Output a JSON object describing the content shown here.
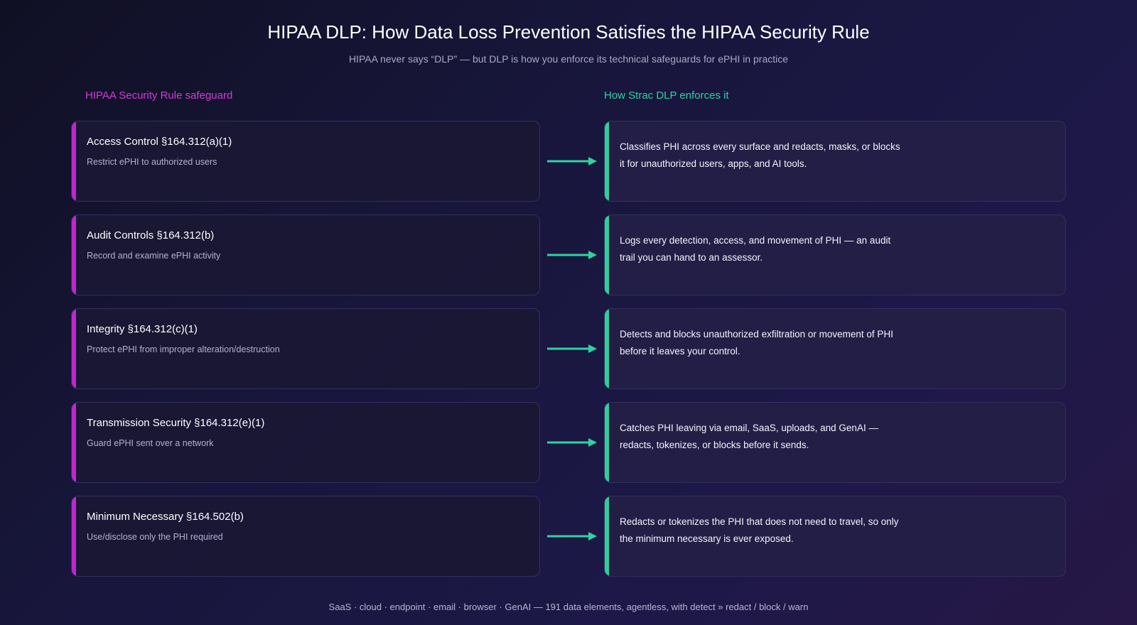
{
  "title": "HIPAA DLP: How Data Loss Prevention Satisfies the HIPAA Security Rule",
  "subtitle": "HIPAA never says “DLP” — but DLP is how you enforce its technical safeguards for ePHI in practice",
  "columns": {
    "left": "HIPAA Security Rule safeguard",
    "right": "How Strac DLP enforces it"
  },
  "rows": [
    {
      "safeguard": "Access Control §164.312(a)(1)",
      "description": "Restrict ePHI to authorized users",
      "enforcement": "Classifies PHI across every surface and redacts, masks, or blocks it for unauthorized users, apps, and AI tools."
    },
    {
      "safeguard": "Audit Controls §164.312(b)",
      "description": "Record and examine ePHI activity",
      "enforcement": "Logs every detection, access, and movement of PHI — an audit trail you can hand to an assessor."
    },
    {
      "safeguard": "Integrity §164.312(c)(1)",
      "description": "Protect ePHI from improper alteration/destruction",
      "enforcement": "Detects and blocks unauthorized exfiltration or movement of PHI before it leaves your control."
    },
    {
      "safeguard": "Transmission Security §164.312(e)(1)",
      "description": "Guard ePHI sent over a network",
      "enforcement": "Catches PHI leaving via email, SaaS, uploads, and GenAI — redacts, tokenizes, or blocks before it sends."
    },
    {
      "safeguard": "Minimum Necessary §164.502(b)",
      "description": "Use/disclose only the PHI required",
      "enforcement": "Redacts or tokenizes the PHI that does not need to travel, so only the minimum necessary is ever exposed."
    }
  ],
  "footer": "SaaS · cloud · endpoint · email · browser · GenAI — 191 data elements, agentless, with detect » redact / block / warn",
  "colors": {
    "safeguard_accent": "#c126cf",
    "enforce_accent": "#2ecf9a",
    "arrow": "#2ed3a0"
  }
}
